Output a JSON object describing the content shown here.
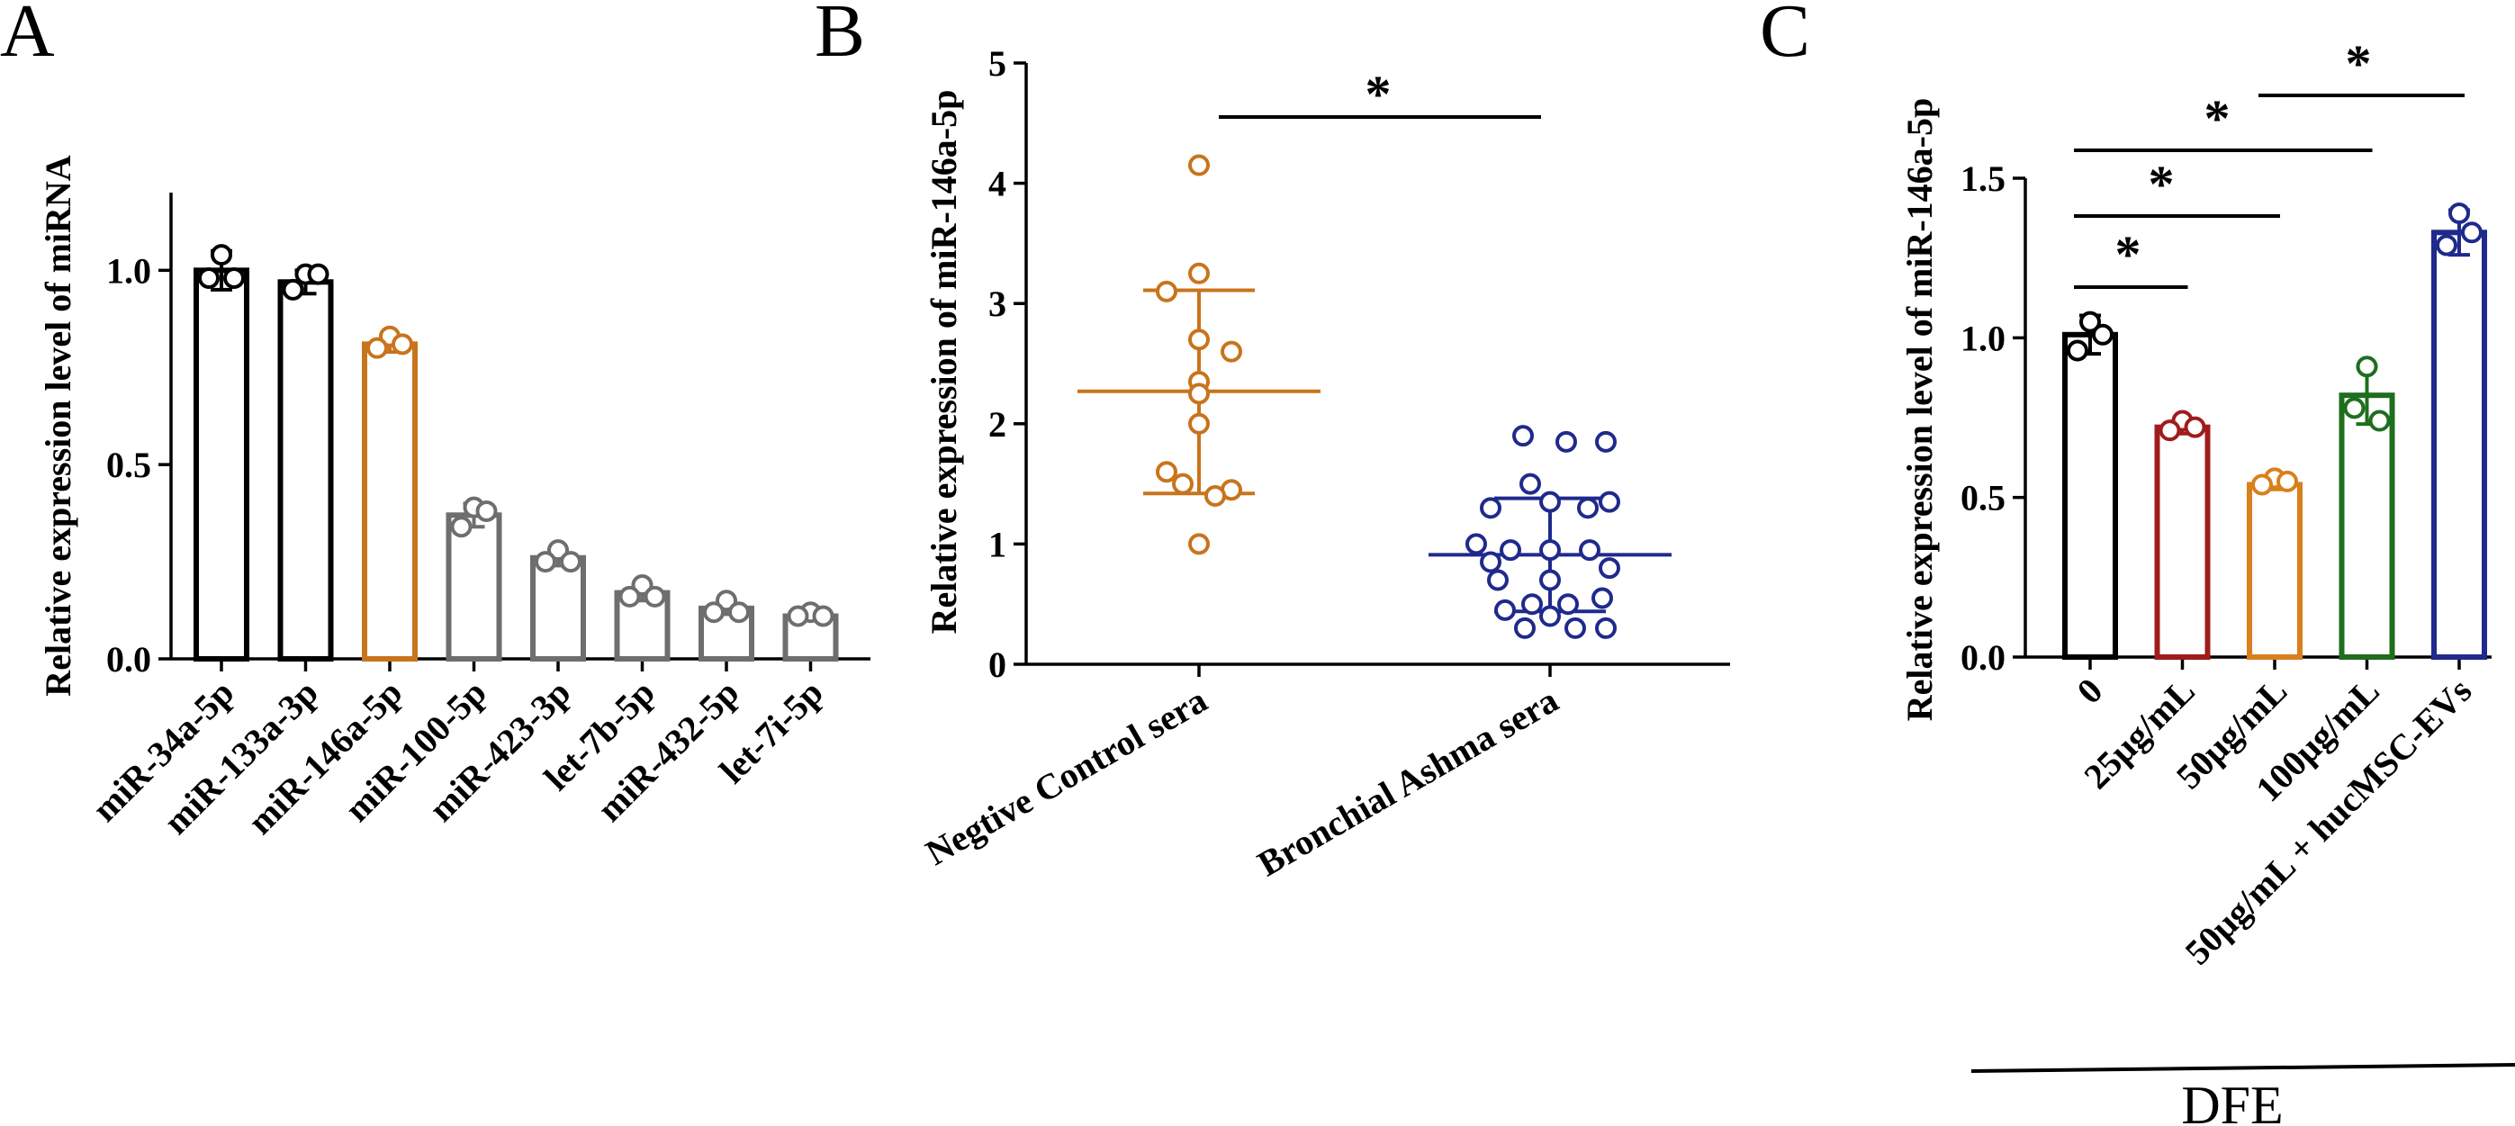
{
  "panel_letters": {
    "a": "A",
    "b": "B",
    "c": "C"
  },
  "significance_star": "*",
  "chart_data": [
    {
      "panel": "A",
      "type": "bar",
      "ylabel": "Relative expression level of miRNA",
      "ylim": [
        0,
        1.2
      ],
      "yticks": [
        "0.0",
        "0.5",
        "1.0"
      ],
      "categories": [
        "miR-34a-5p",
        "miR-133a-3p",
        "miR-146a-5p",
        "miR-100-5p",
        "miR-423-3p",
        "let-7b-5p",
        "miR-432-5p",
        "let-7i-5p"
      ],
      "values": [
        1.0,
        0.97,
        0.81,
        0.37,
        0.26,
        0.17,
        0.13,
        0.11
      ],
      "errors": [
        0.05,
        0.03,
        0.02,
        0.03,
        0.02,
        0.02,
        0.015,
        0.01
      ],
      "points": [
        [
          1.04,
          0.98,
          0.98
        ],
        [
          0.99,
          0.95,
          0.99
        ],
        [
          0.83,
          0.8,
          0.81
        ],
        [
          0.39,
          0.34,
          0.38
        ],
        [
          0.28,
          0.25,
          0.25
        ],
        [
          0.19,
          0.16,
          0.16
        ],
        [
          0.15,
          0.12,
          0.12
        ],
        [
          0.12,
          0.11,
          0.11
        ]
      ],
      "colors": [
        "#000000",
        "#000000",
        "#C8741C",
        "#6E6E6E",
        "#6E6E6E",
        "#6E6E6E",
        "#6E6E6E",
        "#6E6E6E"
      ]
    },
    {
      "panel": "B",
      "type": "scatter",
      "ylabel": "Relative  expression of miR-146a-5p",
      "ylim": [
        0,
        5
      ],
      "yticks": [
        "0",
        "1",
        "2",
        "3",
        "4",
        "5"
      ],
      "categories": [
        "Negtive Control sera",
        "Bronchial Ashma sera"
      ],
      "series": [
        {
          "name": "Negtive Control sera",
          "color": "#C8741C",
          "mean": 2.27,
          "sd_upper": 3.11,
          "sd_lower": 1.42,
          "points": [
            4.15,
            3.25,
            3.1,
            2.7,
            2.6,
            2.35,
            2.25,
            2.0,
            1.6,
            1.45,
            1.5,
            1.4,
            1.0
          ]
        },
        {
          "name": "Bronchial Ashma sera",
          "color": "#1F2A8C",
          "mean": 0.91,
          "sd_upper": 1.38,
          "sd_lower": 0.44,
          "points": [
            1.9,
            1.85,
            1.85,
            1.5,
            1.35,
            1.3,
            1.35,
            1.3,
            1.0,
            0.95,
            0.95,
            0.95,
            0.85,
            0.8,
            0.7,
            0.7,
            0.55,
            0.5,
            0.5,
            0.45,
            0.4,
            0.3,
            0.3,
            0.3
          ]
        }
      ],
      "comparisons": [
        {
          "between": [
            0,
            1
          ],
          "label": "*"
        }
      ]
    },
    {
      "panel": "C",
      "type": "bar",
      "ylabel": "Relative expression level of miR-146a-5p",
      "xlabel": "DFE",
      "ylim": [
        0,
        1.5
      ],
      "yticks": [
        "0.0",
        "0.5",
        "1.0",
        "1.5"
      ],
      "categories": [
        "0",
        "25μg/mL",
        "50μg/mL",
        "100μg/mL",
        "50μg/mL + hucMSC-EVs"
      ],
      "values": [
        1.01,
        0.72,
        0.54,
        0.82,
        1.33
      ],
      "errors": [
        0.06,
        0.02,
        0.015,
        0.09,
        0.07
      ],
      "points": [
        [
          1.05,
          0.96,
          1.01
        ],
        [
          0.74,
          0.71,
          0.72
        ],
        [
          0.56,
          0.54,
          0.55
        ],
        [
          0.91,
          0.78,
          0.74
        ],
        [
          1.39,
          1.29,
          1.33
        ]
      ],
      "colors": [
        "#000000",
        "#A01C1C",
        "#D8801C",
        "#1E6E1E",
        "#1F2A8C"
      ],
      "comparisons": [
        {
          "between": [
            0,
            1
          ],
          "label": "*"
        },
        {
          "between": [
            0,
            2
          ],
          "label": "*"
        },
        {
          "between": [
            0,
            3
          ],
          "label": "*"
        },
        {
          "between": [
            2,
            4
          ],
          "label": "*"
        }
      ]
    }
  ]
}
